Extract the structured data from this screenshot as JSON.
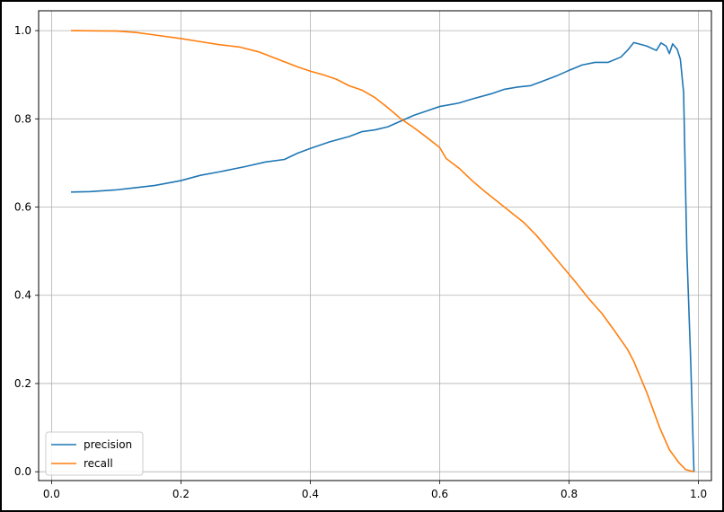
{
  "chart_data": {
    "type": "line",
    "title": "",
    "xlabel": "",
    "ylabel": "",
    "xlim": [
      -0.02,
      1.02
    ],
    "ylim": [
      -0.02,
      1.045
    ],
    "grid": true,
    "legend": "lower-left",
    "x_ticks": [
      "0.0",
      "0.2",
      "0.4",
      "0.6",
      "0.8",
      "1.0"
    ],
    "y_ticks": [
      "0.0",
      "0.2",
      "0.4",
      "0.6",
      "0.8",
      "1.0"
    ],
    "series": [
      {
        "name": "precision",
        "color": "#1f77b4",
        "points": [
          [
            0.03,
            0.634
          ],
          [
            0.06,
            0.635
          ],
          [
            0.1,
            0.639
          ],
          [
            0.13,
            0.644
          ],
          [
            0.16,
            0.649
          ],
          [
            0.2,
            0.66
          ],
          [
            0.23,
            0.672
          ],
          [
            0.26,
            0.68
          ],
          [
            0.3,
            0.692
          ],
          [
            0.33,
            0.702
          ],
          [
            0.36,
            0.708
          ],
          [
            0.38,
            0.722
          ],
          [
            0.4,
            0.733
          ],
          [
            0.43,
            0.748
          ],
          [
            0.46,
            0.76
          ],
          [
            0.48,
            0.771
          ],
          [
            0.5,
            0.775
          ],
          [
            0.52,
            0.782
          ],
          [
            0.54,
            0.795
          ],
          [
            0.56,
            0.808
          ],
          [
            0.58,
            0.818
          ],
          [
            0.6,
            0.828
          ],
          [
            0.63,
            0.836
          ],
          [
            0.65,
            0.845
          ],
          [
            0.68,
            0.857
          ],
          [
            0.7,
            0.867
          ],
          [
            0.72,
            0.872
          ],
          [
            0.74,
            0.875
          ],
          [
            0.76,
            0.886
          ],
          [
            0.78,
            0.897
          ],
          [
            0.8,
            0.91
          ],
          [
            0.82,
            0.922
          ],
          [
            0.84,
            0.928
          ],
          [
            0.86,
            0.928
          ],
          [
            0.88,
            0.94
          ],
          [
            0.89,
            0.955
          ],
          [
            0.9,
            0.973
          ],
          [
            0.92,
            0.965
          ],
          [
            0.935,
            0.955
          ],
          [
            0.942,
            0.972
          ],
          [
            0.95,
            0.965
          ],
          [
            0.955,
            0.948
          ],
          [
            0.96,
            0.97
          ],
          [
            0.967,
            0.958
          ],
          [
            0.972,
            0.935
          ],
          [
            0.977,
            0.86
          ],
          [
            0.982,
            0.5
          ],
          [
            0.988,
            0.25
          ],
          [
            0.993,
            0.0
          ]
        ]
      },
      {
        "name": "recall",
        "color": "#ff7f0e",
        "points": [
          [
            0.03,
            1.0
          ],
          [
            0.1,
            0.999
          ],
          [
            0.13,
            0.996
          ],
          [
            0.16,
            0.99
          ],
          [
            0.2,
            0.982
          ],
          [
            0.23,
            0.975
          ],
          [
            0.26,
            0.968
          ],
          [
            0.29,
            0.963
          ],
          [
            0.32,
            0.952
          ],
          [
            0.35,
            0.935
          ],
          [
            0.38,
            0.918
          ],
          [
            0.4,
            0.908
          ],
          [
            0.42,
            0.9
          ],
          [
            0.44,
            0.89
          ],
          [
            0.46,
            0.875
          ],
          [
            0.48,
            0.865
          ],
          [
            0.5,
            0.848
          ],
          [
            0.52,
            0.825
          ],
          [
            0.54,
            0.8
          ],
          [
            0.56,
            0.78
          ],
          [
            0.58,
            0.758
          ],
          [
            0.6,
            0.735
          ],
          [
            0.61,
            0.71
          ],
          [
            0.63,
            0.688
          ],
          [
            0.65,
            0.66
          ],
          [
            0.67,
            0.635
          ],
          [
            0.7,
            0.6
          ],
          [
            0.73,
            0.565
          ],
          [
            0.75,
            0.535
          ],
          [
            0.77,
            0.5
          ],
          [
            0.79,
            0.465
          ],
          [
            0.81,
            0.43
          ],
          [
            0.83,
            0.393
          ],
          [
            0.85,
            0.36
          ],
          [
            0.87,
            0.32
          ],
          [
            0.89,
            0.278
          ],
          [
            0.9,
            0.25
          ],
          [
            0.92,
            0.18
          ],
          [
            0.94,
            0.1
          ],
          [
            0.955,
            0.05
          ],
          [
            0.97,
            0.02
          ],
          [
            0.98,
            0.005
          ],
          [
            0.993,
            0.0
          ]
        ]
      }
    ]
  }
}
